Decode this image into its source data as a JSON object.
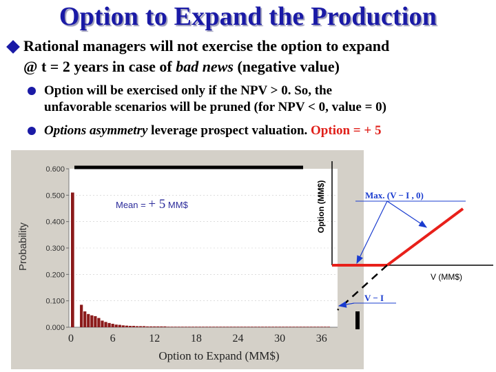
{
  "slide": {
    "title": "Option to Expand the Production",
    "main_bullet": {
      "line1": "Rational managers will not exercise the option to expand",
      "line2_pre": "@ t = 2 years in case of ",
      "line2_italic": "bad news",
      "line2_post": " (negative value)"
    },
    "sub1": {
      "line1": "Option will be exercised only if the NPV > 0.  So, the",
      "line2": "unfavorable scenarios will be pruned (for NPV < 0, value = 0)"
    },
    "sub2": {
      "italic": "Options asymmetry",
      "rest": " leverage prospect valuation. ",
      "red": "Option = + 5"
    }
  },
  "colors": {
    "title": "#1a1aa6",
    "bar": "#8b1a1a",
    "payoff": "#e8201a",
    "accent_red": "#e0201a"
  },
  "chart_data": [
    {
      "type": "bar",
      "xlabel": "Option to Expand (MM$)",
      "ylabel": "Probability",
      "x_tick_labels": [
        "0",
        "6",
        "12",
        "18",
        "24",
        "30",
        "36"
      ],
      "y_tick_labels": [
        "0.600",
        "0.500",
        "0.400",
        "0.300",
        "0.200",
        "0.100",
        "0.000"
      ],
      "ylim": [
        0,
        0.6
      ],
      "xlim": [
        0,
        38
      ],
      "annotation": "Mean = + 5 MM$",
      "annotation_parts": {
        "prefix": "Mean = ",
        "value": "+ 5",
        "suffix": " MM$"
      },
      "bins_x": [
        0,
        1.5,
        2,
        2.5,
        3,
        3.5,
        4,
        4.5,
        5,
        5.5,
        6,
        6.5,
        7,
        7.5,
        8,
        8.5,
        9,
        9.5,
        10,
        10.5,
        11,
        11.5,
        12,
        12.5,
        13,
        13.5,
        14,
        14.5,
        15,
        15.5,
        16,
        16.5,
        17,
        17.5,
        18,
        18.5,
        19,
        19.5,
        20,
        20.5,
        21,
        21.5,
        22,
        22.5,
        23,
        23.5,
        24,
        24.5,
        25,
        25.5,
        26,
        26.5,
        27,
        27.5,
        28,
        28.5,
        29,
        29.5,
        30,
        30.5,
        31,
        31.5,
        32,
        32.5,
        33,
        33.5,
        34,
        34.5,
        35,
        35.5,
        36,
        36.5,
        37
      ],
      "values": [
        0.51,
        0.085,
        0.06,
        0.05,
        0.045,
        0.042,
        0.035,
        0.025,
        0.02,
        0.016,
        0.013,
        0.01,
        0.009,
        0.007,
        0.006,
        0.005,
        0.005,
        0.004,
        0.004,
        0.004,
        0.003,
        0.003,
        0.003,
        0.003,
        0.003,
        0.003,
        0.002,
        0.002,
        0.002,
        0.002,
        0.002,
        0.002,
        0.002,
        0.002,
        0.002,
        0.002,
        0.002,
        0.002,
        0.002,
        0.002,
        0.002,
        0.002,
        0.002,
        0.002,
        0.002,
        0.002,
        0.002,
        0.002,
        0.002,
        0.002,
        0.002,
        0.002,
        0.002,
        0.002,
        0.002,
        0.002,
        0.002,
        0.002,
        0.002,
        0.002,
        0.002,
        0.002,
        0.002,
        0.002,
        0.002,
        0.002,
        0.002,
        0.002,
        0.002,
        0.002,
        0.002,
        0.002,
        0.002
      ]
    },
    {
      "type": "line",
      "xlabel": "V (MM$)",
      "ylabel": "Option (MM$)",
      "annotation_max": "Max. (V − I , 0)",
      "annotation_line": "V − I",
      "series": [
        {
          "name": "Max. (V − I , 0)",
          "x": [
            0,
            1,
            2
          ],
          "values": [
            0,
            0,
            1
          ]
        },
        {
          "name": "V − I",
          "x": [
            0,
            1,
            2
          ],
          "values": [
            -1,
            0,
            1
          ]
        }
      ]
    }
  ]
}
